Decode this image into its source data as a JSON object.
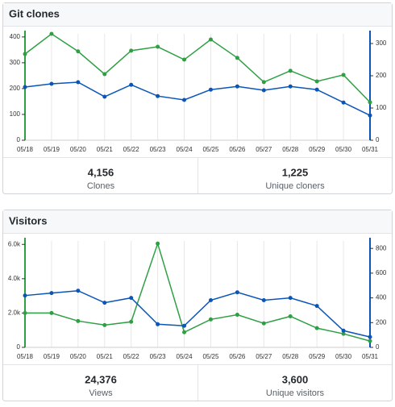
{
  "chart_data": [
    {
      "type": "line",
      "title": "Git clones",
      "categories": [
        "05/18",
        "05/19",
        "05/20",
        "05/21",
        "05/22",
        "05/23",
        "05/24",
        "05/25",
        "05/26",
        "05/27",
        "05/28",
        "05/29",
        "05/30",
        "05/31"
      ],
      "series": [
        {
          "name": "Clones",
          "color": "#2ea043",
          "values": [
            334,
            412,
            344,
            256,
            347,
            362,
            312,
            390,
            319,
            225,
            269,
            228,
            253,
            147
          ]
        },
        {
          "name": "Unique cloners",
          "color": "#0b55b7",
          "axis": "y2",
          "values": [
            165,
            175,
            180,
            135,
            172,
            137,
            125,
            157,
            167,
            155,
            167,
            157,
            117,
            77
          ]
        }
      ],
      "ylim": [
        0,
        412
      ],
      "yticks": [
        0,
        100,
        200,
        300,
        400
      ],
      "y2lim": [
        0,
        330
      ],
      "y2ticks": [
        0,
        100,
        200,
        300
      ],
      "grid": true,
      "totals": [
        {
          "value": 4156,
          "label": "4,156"
        },
        {
          "value": 1225,
          "label": "1,225"
        }
      ]
    },
    {
      "type": "line",
      "title": "Visitors",
      "categories": [
        "05/18",
        "05/19",
        "05/20",
        "05/21",
        "05/22",
        "05/23",
        "05/24",
        "05/25",
        "05/26",
        "05/27",
        "05/28",
        "05/29",
        "05/30",
        "05/31"
      ],
      "series": [
        {
          "name": "Views",
          "color": "#2ea043",
          "values": [
            2000,
            2000,
            1535,
            1300,
            1490,
            6050,
            880,
            1630,
            1900,
            1400,
            1810,
            1120,
            790,
            370
          ]
        },
        {
          "name": "Unique visitors",
          "color": "#0b55b7",
          "axis": "y2",
          "values": [
            419,
            439,
            458,
            361,
            400,
            187,
            174,
            381,
            445,
            381,
            400,
            335,
            135,
            84
          ]
        }
      ],
      "ylim": [
        0,
        6200
      ],
      "yticks": [
        0,
        {
          "value": 2000,
          "label": "2.0k"
        },
        {
          "value": 4000,
          "label": "4.0k"
        },
        {
          "value": 6000,
          "label": "6.0k"
        }
      ],
      "y2lim": [
        0,
        860
      ],
      "y2ticks": [
        0,
        200,
        400,
        600,
        800
      ],
      "grid": true,
      "totals": [
        {
          "value": 24376,
          "label": "24,376"
        },
        {
          "value": 3600,
          "label": "3,600"
        }
      ]
    }
  ]
}
